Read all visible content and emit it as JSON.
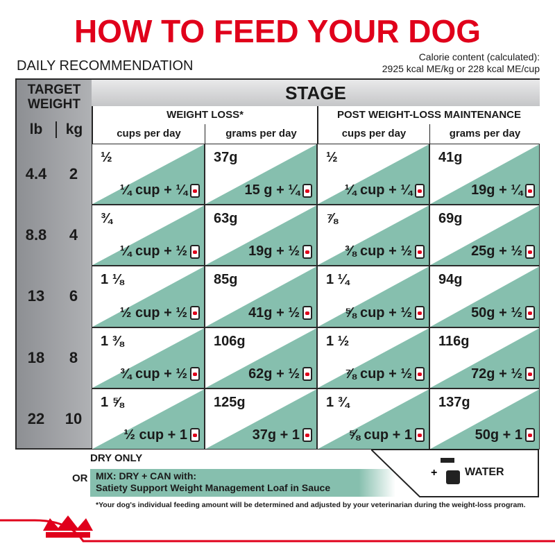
{
  "header": {
    "title": "HOW TO FEED YOUR DOG",
    "subtitle": "DAILY RECOMMENDATION",
    "calorie": [
      "Calorie content (calculated):",
      "2925 kcal ME/kg or 228 kcal ME/cup"
    ]
  },
  "table": {
    "weight_header": "TARGET WEIGHT",
    "lb_header": "lb",
    "kg_header": "kg",
    "stage_header": "STAGE",
    "stages": [
      {
        "name": "WEIGHT LOSS*",
        "columns": [
          "cups per day",
          "grams per day"
        ]
      },
      {
        "name": "POST WEIGHT-LOSS MAINTENANCE",
        "columns": [
          "cups per day",
          "grams per day"
        ]
      }
    ],
    "rows": [
      {
        "lb": 4.4,
        "kg": 2,
        "cells": [
          {
            "dry": "½",
            "mix": "¼ cup + ¼"
          },
          {
            "dry": "37g",
            "mix": "15 g + ¼"
          },
          {
            "dry": "½",
            "mix": "¼ cup + ¼"
          },
          {
            "dry": "41g",
            "mix": "19g + ¼"
          }
        ]
      },
      {
        "lb": 8.8,
        "kg": 4,
        "cells": [
          {
            "dry": "¾",
            "mix": "¼ cup + ½"
          },
          {
            "dry": "63g",
            "mix": "19g + ½"
          },
          {
            "dry": "⅞",
            "mix": "⅜ cup + ½"
          },
          {
            "dry": "69g",
            "mix": "25g + ½"
          }
        ]
      },
      {
        "lb": 13,
        "kg": 6,
        "cells": [
          {
            "dry": "1 ⅛",
            "mix": "½ cup + ½"
          },
          {
            "dry": "85g",
            "mix": "41g + ½"
          },
          {
            "dry": "1 ¼",
            "mix": "⅝ cup + ½"
          },
          {
            "dry": "94g",
            "mix": "50g + ½"
          }
        ]
      },
      {
        "lb": 18,
        "kg": 8,
        "cells": [
          {
            "dry": "1 ⅜",
            "mix": "¾ cup + ½"
          },
          {
            "dry": "106g",
            "mix": "62g + ½"
          },
          {
            "dry": "1 ½",
            "mix": "⅞ cup + ½"
          },
          {
            "dry": "116g",
            "mix": "72g + ½"
          }
        ]
      },
      {
        "lb": 22,
        "kg": 10,
        "cells": [
          {
            "dry": "1 ⅝",
            "mix": "½ cup + 1"
          },
          {
            "dry": "125g",
            "mix": "37g + 1"
          },
          {
            "dry": "1 ¾",
            "mix": "⅝ cup + 1"
          },
          {
            "dry": "137g",
            "mix": "50g + 1"
          }
        ]
      }
    ]
  },
  "footer": {
    "dry_only": "DRY ONLY",
    "or": "OR",
    "mix": "MIX: DRY + CAN with:",
    "product": "Satiety Support Weight Management Loaf in Sauce",
    "water": "WATER",
    "note": "*Your dog's individual feeding amount will be determined and adjusted by your veterinarian during the weight-loss program."
  }
}
